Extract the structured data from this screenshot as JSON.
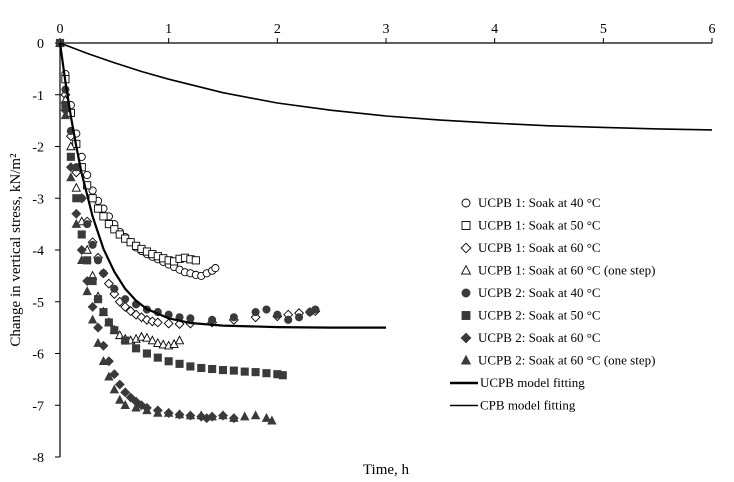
{
  "chart_data": {
    "type": "scatter",
    "title": "",
    "xlabel": "Time, h",
    "ylabel": "Change in vertical stress, kN/m²",
    "xlim": [
      0,
      6
    ],
    "ylim": [
      -8,
      0
    ],
    "x_ticks": [
      0,
      1,
      2,
      3,
      4,
      5,
      6
    ],
    "y_ticks": [
      0,
      -1,
      -2,
      -3,
      -4,
      -5,
      -6,
      -7,
      -8
    ],
    "x_tick_labels": [
      "0",
      "1",
      "2",
      "3",
      "4",
      "5",
      "6"
    ],
    "y_tick_labels": [
      "0",
      "-1",
      "-2",
      "-3",
      "-4",
      "-5",
      "-6",
      "-7",
      "-8"
    ],
    "x_axis_position": "top",
    "grid": false,
    "legend_position": "right",
    "series": [
      {
        "name": "UCPB 1: Soak at 40 °C",
        "marker": "circle-open",
        "points": [
          [
            0,
            0
          ],
          [
            0.05,
            -0.6
          ],
          [
            0.1,
            -1.2
          ],
          [
            0.15,
            -1.75
          ],
          [
            0.2,
            -2.2
          ],
          [
            0.25,
            -2.55
          ],
          [
            0.3,
            -2.85
          ],
          [
            0.35,
            -3.05
          ],
          [
            0.4,
            -3.2
          ],
          [
            0.45,
            -3.35
          ],
          [
            0.5,
            -3.5
          ],
          [
            0.55,
            -3.65
          ],
          [
            0.6,
            -3.75
          ],
          [
            0.65,
            -3.85
          ],
          [
            0.7,
            -3.95
          ],
          [
            0.75,
            -4.02
          ],
          [
            0.8,
            -4.08
          ],
          [
            0.85,
            -4.13
          ],
          [
            0.9,
            -4.18
          ],
          [
            0.95,
            -4.23
          ],
          [
            1.0,
            -4.28
          ],
          [
            1.05,
            -4.33
          ],
          [
            1.1,
            -4.38
          ],
          [
            1.15,
            -4.43
          ],
          [
            1.2,
            -4.45
          ],
          [
            1.25,
            -4.48
          ],
          [
            1.3,
            -4.5
          ],
          [
            1.35,
            -4.45
          ],
          [
            1.4,
            -4.4
          ],
          [
            1.43,
            -4.35
          ]
        ]
      },
      {
        "name": "UCPB 1: Soak at 50 °C",
        "marker": "square-open",
        "points": [
          [
            0,
            0
          ],
          [
            0.05,
            -0.7
          ],
          [
            0.1,
            -1.35
          ],
          [
            0.15,
            -1.95
          ],
          [
            0.2,
            -2.4
          ],
          [
            0.25,
            -2.75
          ],
          [
            0.3,
            -3.0
          ],
          [
            0.35,
            -3.2
          ],
          [
            0.4,
            -3.35
          ],
          [
            0.45,
            -3.5
          ],
          [
            0.5,
            -3.6
          ],
          [
            0.55,
            -3.7
          ],
          [
            0.6,
            -3.78
          ],
          [
            0.65,
            -3.85
          ],
          [
            0.7,
            -3.92
          ],
          [
            0.75,
            -3.98
          ],
          [
            0.8,
            -4.03
          ],
          [
            0.85,
            -4.08
          ],
          [
            0.9,
            -4.12
          ],
          [
            0.95,
            -4.16
          ],
          [
            1.0,
            -4.2
          ],
          [
            1.05,
            -4.22
          ],
          [
            1.1,
            -4.17
          ],
          [
            1.15,
            -4.15
          ],
          [
            1.2,
            -4.18
          ],
          [
            1.25,
            -4.2
          ]
        ]
      },
      {
        "name": "UCPB 1: Soak at 60 °C",
        "marker": "diamond-open",
        "points": [
          [
            0,
            0
          ],
          [
            0.05,
            -1.0
          ],
          [
            0.1,
            -1.8
          ],
          [
            0.15,
            -2.5
          ],
          [
            0.2,
            -3.0
          ],
          [
            0.25,
            -3.45
          ],
          [
            0.3,
            -3.85
          ],
          [
            0.35,
            -4.15
          ],
          [
            0.4,
            -4.45
          ],
          [
            0.45,
            -4.65
          ],
          [
            0.5,
            -4.85
          ],
          [
            0.55,
            -5.0
          ],
          [
            0.6,
            -5.1
          ],
          [
            0.65,
            -5.18
          ],
          [
            0.7,
            -5.25
          ],
          [
            0.75,
            -5.3
          ],
          [
            0.8,
            -5.35
          ],
          [
            0.85,
            -5.38
          ],
          [
            0.9,
            -5.4
          ],
          [
            1.0,
            -5.42
          ],
          [
            1.1,
            -5.43
          ],
          [
            1.2,
            -5.42
          ],
          [
            1.4,
            -5.4
          ],
          [
            1.6,
            -5.35
          ],
          [
            1.8,
            -5.3
          ],
          [
            2.0,
            -5.28
          ],
          [
            2.1,
            -5.25
          ],
          [
            2.2,
            -5.22
          ],
          [
            2.3,
            -5.2
          ],
          [
            2.35,
            -5.18
          ]
        ]
      },
      {
        "name": "UCPB 1: Soak at 60 °C (one step)",
        "marker": "triangle-open",
        "points": [
          [
            0,
            0
          ],
          [
            0.05,
            -1.1
          ],
          [
            0.1,
            -2.0
          ],
          [
            0.15,
            -2.8
          ],
          [
            0.2,
            -3.45
          ],
          [
            0.25,
            -4.0
          ],
          [
            0.3,
            -4.5
          ],
          [
            0.35,
            -4.9
          ],
          [
            0.4,
            -5.2
          ],
          [
            0.45,
            -5.4
          ],
          [
            0.5,
            -5.55
          ],
          [
            0.55,
            -5.65
          ],
          [
            0.6,
            -5.72
          ],
          [
            0.65,
            -5.75
          ],
          [
            0.7,
            -5.72
          ],
          [
            0.75,
            -5.68
          ],
          [
            0.8,
            -5.7
          ],
          [
            0.85,
            -5.75
          ],
          [
            0.9,
            -5.8
          ],
          [
            0.95,
            -5.83
          ],
          [
            1.0,
            -5.85
          ],
          [
            1.05,
            -5.82
          ],
          [
            1.1,
            -5.75
          ]
        ]
      },
      {
        "name": "UCPB 2: Soak at 40 °C",
        "marker": "circle-filled",
        "points": [
          [
            0,
            0
          ],
          [
            0.05,
            -0.9
          ],
          [
            0.1,
            -1.7
          ],
          [
            0.15,
            -2.4
          ],
          [
            0.2,
            -3.0
          ],
          [
            0.25,
            -3.5
          ],
          [
            0.3,
            -3.9
          ],
          [
            0.35,
            -4.2
          ],
          [
            0.4,
            -4.45
          ],
          [
            0.5,
            -4.75
          ],
          [
            0.6,
            -4.95
          ],
          [
            0.7,
            -5.05
          ],
          [
            0.8,
            -5.15
          ],
          [
            0.9,
            -5.2
          ],
          [
            1.0,
            -5.25
          ],
          [
            1.1,
            -5.3
          ],
          [
            1.2,
            -5.32
          ],
          [
            1.4,
            -5.35
          ],
          [
            1.6,
            -5.3
          ],
          [
            1.8,
            -5.2
          ],
          [
            1.9,
            -5.15
          ],
          [
            2.0,
            -5.25
          ],
          [
            2.1,
            -5.35
          ],
          [
            2.2,
            -5.3
          ],
          [
            2.3,
            -5.2
          ],
          [
            2.35,
            -5.15
          ]
        ]
      },
      {
        "name": "UCPB 2: Soak at 50 °C",
        "marker": "square-filled",
        "points": [
          [
            0,
            0
          ],
          [
            0.05,
            -1.2
          ],
          [
            0.1,
            -2.2
          ],
          [
            0.15,
            -3.0
          ],
          [
            0.2,
            -3.7
          ],
          [
            0.25,
            -4.2
          ],
          [
            0.3,
            -4.6
          ],
          [
            0.35,
            -4.95
          ],
          [
            0.4,
            -5.2
          ],
          [
            0.45,
            -5.4
          ],
          [
            0.5,
            -5.55
          ],
          [
            0.6,
            -5.75
          ],
          [
            0.7,
            -5.9
          ],
          [
            0.8,
            -6.0
          ],
          [
            0.9,
            -6.08
          ],
          [
            1.0,
            -6.15
          ],
          [
            1.1,
            -6.2
          ],
          [
            1.2,
            -6.25
          ],
          [
            1.3,
            -6.28
          ],
          [
            1.4,
            -6.3
          ],
          [
            1.5,
            -6.32
          ],
          [
            1.6,
            -6.33
          ],
          [
            1.7,
            -6.35
          ],
          [
            1.8,
            -6.36
          ],
          [
            1.9,
            -6.38
          ],
          [
            2.0,
            -6.4
          ],
          [
            2.05,
            -6.42
          ]
        ]
      },
      {
        "name": "UCPB 2: Soak at 60 °C",
        "marker": "diamond-filled",
        "points": [
          [
            0,
            0
          ],
          [
            0.05,
            -1.3
          ],
          [
            0.1,
            -2.4
          ],
          [
            0.15,
            -3.3
          ],
          [
            0.2,
            -4.0
          ],
          [
            0.25,
            -4.6
          ],
          [
            0.3,
            -5.1
          ],
          [
            0.35,
            -5.5
          ],
          [
            0.4,
            -5.85
          ],
          [
            0.45,
            -6.15
          ],
          [
            0.5,
            -6.4
          ],
          [
            0.55,
            -6.6
          ],
          [
            0.6,
            -6.75
          ],
          [
            0.65,
            -6.85
          ],
          [
            0.7,
            -6.93
          ],
          [
            0.75,
            -7.0
          ],
          [
            0.8,
            -7.05
          ],
          [
            0.9,
            -7.1
          ],
          [
            1.0,
            -7.15
          ],
          [
            1.1,
            -7.18
          ],
          [
            1.2,
            -7.2
          ],
          [
            1.3,
            -7.22
          ],
          [
            1.35,
            -7.25
          ],
          [
            1.4,
            -7.22
          ],
          [
            1.5,
            -7.2
          ],
          [
            1.6,
            -7.25
          ]
        ]
      },
      {
        "name": "UCPB 2: Soak at 60 °C (one step)",
        "marker": "triangle-filled",
        "points": [
          [
            0,
            0
          ],
          [
            0.05,
            -1.4
          ],
          [
            0.1,
            -2.6
          ],
          [
            0.15,
            -3.5
          ],
          [
            0.2,
            -4.2
          ],
          [
            0.25,
            -4.8
          ],
          [
            0.3,
            -5.35
          ],
          [
            0.35,
            -5.8
          ],
          [
            0.4,
            -6.15
          ],
          [
            0.45,
            -6.45
          ],
          [
            0.5,
            -6.7
          ],
          [
            0.55,
            -6.9
          ],
          [
            0.6,
            -7.0
          ],
          [
            0.7,
            -7.05
          ],
          [
            0.8,
            -7.1
          ],
          [
            0.9,
            -7.15
          ],
          [
            1.0,
            -7.15
          ],
          [
            1.1,
            -7.18
          ],
          [
            1.2,
            -7.2
          ],
          [
            1.3,
            -7.2
          ],
          [
            1.4,
            -7.22
          ],
          [
            1.5,
            -7.2
          ],
          [
            1.6,
            -7.25
          ],
          [
            1.7,
            -7.22
          ],
          [
            1.8,
            -7.2
          ],
          [
            1.9,
            -7.25
          ],
          [
            1.95,
            -7.3
          ]
        ]
      },
      {
        "name": "UCPB model fitting",
        "marker": "line-thick",
        "points": [
          [
            0,
            0
          ],
          [
            0.05,
            -0.75
          ],
          [
            0.1,
            -1.42
          ],
          [
            0.15,
            -2.0
          ],
          [
            0.2,
            -2.52
          ],
          [
            0.3,
            -3.35
          ],
          [
            0.4,
            -3.98
          ],
          [
            0.5,
            -4.42
          ],
          [
            0.6,
            -4.75
          ],
          [
            0.7,
            -4.98
          ],
          [
            0.8,
            -5.14
          ],
          [
            1.0,
            -5.32
          ],
          [
            1.2,
            -5.41
          ],
          [
            1.5,
            -5.46
          ],
          [
            2.0,
            -5.49
          ],
          [
            2.5,
            -5.5
          ],
          [
            3.0,
            -5.5
          ]
        ]
      },
      {
        "name": "CPB model fitting",
        "marker": "line",
        "points": [
          [
            0,
            0
          ],
          [
            0.25,
            -0.2
          ],
          [
            0.5,
            -0.38
          ],
          [
            0.75,
            -0.55
          ],
          [
            1.0,
            -0.7
          ],
          [
            1.5,
            -0.96
          ],
          [
            2.0,
            -1.16
          ],
          [
            2.5,
            -1.3
          ],
          [
            3.0,
            -1.41
          ],
          [
            3.5,
            -1.49
          ],
          [
            4.0,
            -1.55
          ],
          [
            4.5,
            -1.6
          ],
          [
            5.0,
            -1.63
          ],
          [
            5.5,
            -1.66
          ],
          [
            6.0,
            -1.68
          ]
        ]
      }
    ]
  }
}
